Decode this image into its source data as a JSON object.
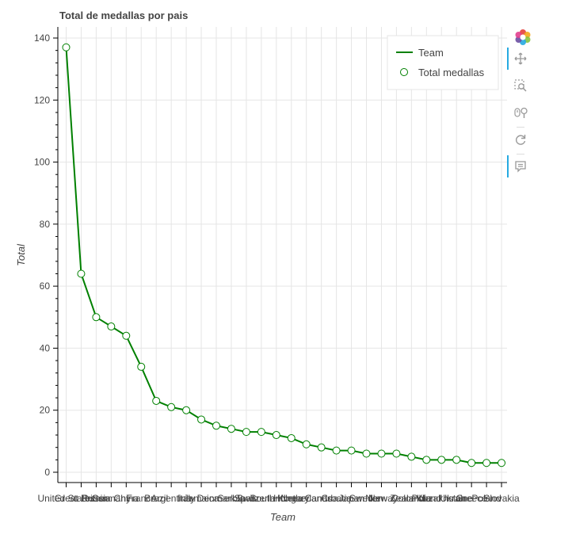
{
  "chart_data": {
    "type": "line",
    "title": "Total de medallas por pais",
    "xlabel": "Team",
    "ylabel": "Total",
    "ylim": [
      0,
      140
    ],
    "y_ticks": [
      0,
      20,
      40,
      60,
      80,
      100,
      120,
      140
    ],
    "grid": true,
    "legend_position": "top-right",
    "categories": [
      "United States",
      "Great Britain",
      "Russia",
      "Germany",
      "China",
      "France",
      "Brazil",
      "Argentina",
      "Italy",
      "Jamaica",
      "Denmark",
      "Serbia",
      "Spain",
      "Switzerland",
      "South Korea",
      "Hungary",
      "Netherlands",
      "Canada",
      "Croatia",
      "Japan",
      "Sweden",
      "Norway",
      "New Zealand",
      "Colombia",
      "Poland",
      "Kazakhstan",
      "Ukraine",
      "Greece",
      "Poland",
      "Slovakia"
    ],
    "series": [
      {
        "name": "Team",
        "kind": "line",
        "color": "#008000",
        "values": [
          137,
          64,
          50,
          47,
          44,
          34,
          23,
          21,
          20,
          17,
          15,
          14,
          13,
          13,
          12,
          11,
          9,
          8,
          7,
          7,
          6,
          6,
          6,
          5,
          4,
          4,
          4,
          3,
          3,
          3
        ]
      },
      {
        "name": "Total medallas",
        "kind": "markers",
        "marker": "circle",
        "line_color": "#008000",
        "fill_color": "#ffffff"
      }
    ]
  },
  "toolbar": {
    "tools": [
      {
        "name": "logo-icon",
        "active": false
      },
      {
        "name": "pan-icon",
        "active": true
      },
      {
        "name": "box-zoom-icon",
        "active": false
      },
      {
        "name": "wheel-zoom-icon",
        "active": false
      },
      {
        "name": "reset-icon",
        "active": false
      },
      {
        "name": "hover-icon",
        "active": true
      }
    ],
    "accent_color": "#26aae1"
  }
}
